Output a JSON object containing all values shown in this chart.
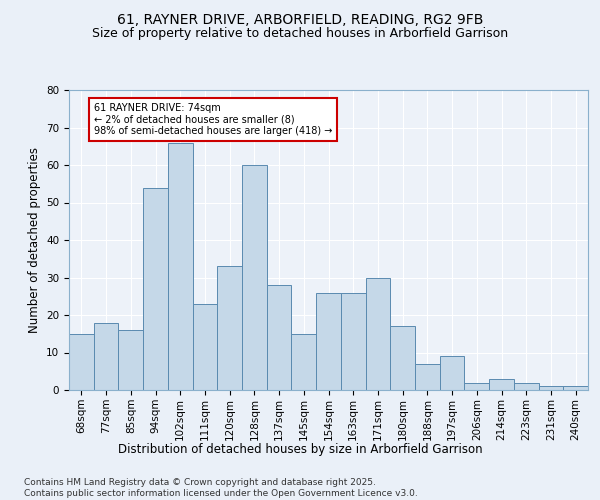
{
  "title1": "61, RAYNER DRIVE, ARBORFIELD, READING, RG2 9FB",
  "title2": "Size of property relative to detached houses in Arborfield Garrison",
  "xlabel": "Distribution of detached houses by size in Arborfield Garrison",
  "ylabel": "Number of detached properties",
  "categories": [
    "68sqm",
    "77sqm",
    "85sqm",
    "94sqm",
    "102sqm",
    "111sqm",
    "120sqm",
    "128sqm",
    "137sqm",
    "145sqm",
    "154sqm",
    "163sqm",
    "171sqm",
    "180sqm",
    "188sqm",
    "197sqm",
    "206sqm",
    "214sqm",
    "223sqm",
    "231sqm",
    "240sqm"
  ],
  "values": [
    15,
    18,
    16,
    54,
    66,
    23,
    33,
    60,
    28,
    15,
    26,
    26,
    30,
    17,
    7,
    9,
    2,
    3,
    2,
    1,
    1
  ],
  "bar_color": "#c5d8e8",
  "bar_edge_color": "#5a8ab0",
  "annotation_text": "61 RAYNER DRIVE: 74sqm\n← 2% of detached houses are smaller (8)\n98% of semi-detached houses are larger (418) →",
  "annotation_box_color": "#ffffff",
  "annotation_box_edge": "#cc0000",
  "footer": "Contains HM Land Registry data © Crown copyright and database right 2025.\nContains public sector information licensed under the Open Government Licence v3.0.",
  "ylim": [
    0,
    80
  ],
  "yticks": [
    0,
    10,
    20,
    30,
    40,
    50,
    60,
    70,
    80
  ],
  "bg_color": "#eaf0f8",
  "plot_bg_color": "#edf2f9",
  "grid_color": "#ffffff",
  "title_fontsize": 10,
  "subtitle_fontsize": 9,
  "axis_label_fontsize": 8.5,
  "tick_fontsize": 7.5,
  "footer_fontsize": 6.5
}
